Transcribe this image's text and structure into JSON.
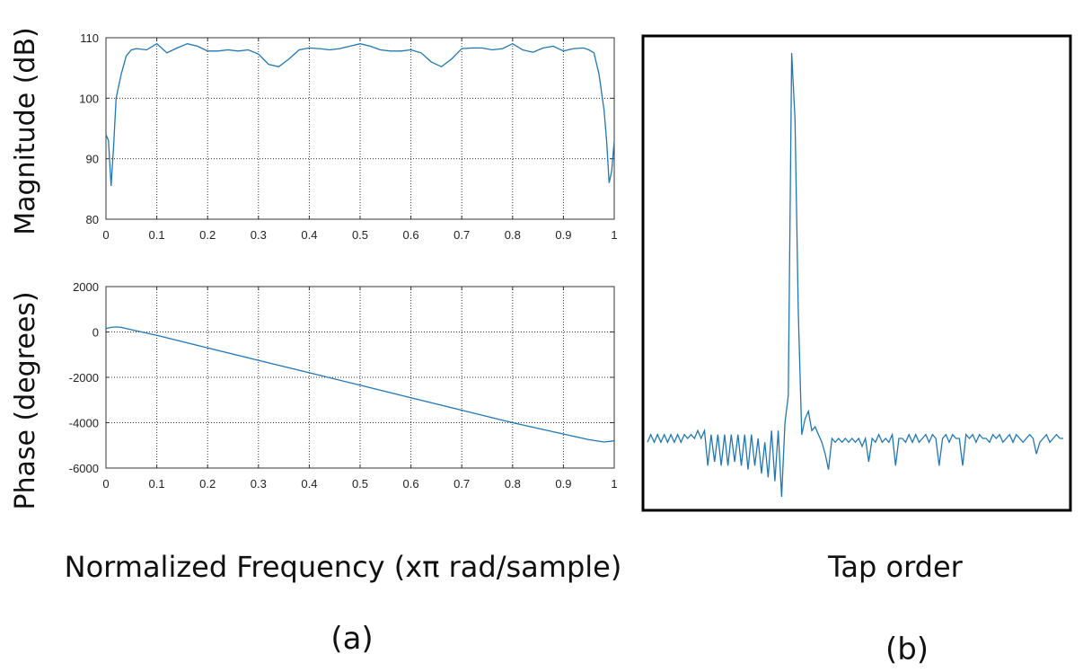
{
  "labels": {
    "magnitude_ylabel": "Magnitude (dB)",
    "phase_ylabel": "Phase (degrees)",
    "xlabel_a": "Normalized Frequency (xπ rad/sample)",
    "xlabel_b": "Tap order",
    "caption_a": "(a)",
    "caption_b": "(b)"
  },
  "colors": {
    "line": "#1f77b4"
  },
  "chart_data": [
    {
      "type": "line",
      "ylabel": "Magnitude (dB)",
      "xlabel": "",
      "xlim": [
        0,
        1
      ],
      "ylim": [
        80,
        110
      ],
      "xticks": [
        0,
        0.1,
        0.2,
        0.3,
        0.4,
        0.5,
        0.6,
        0.7,
        0.8,
        0.9,
        1
      ],
      "xtick_labels": [
        "0",
        "0.1",
        "0.2",
        "0.3",
        "0.4",
        "0.5",
        "0.6",
        "0.7",
        "0.8",
        "0.9",
        "1"
      ],
      "yticks": [
        80,
        90,
        100,
        110
      ],
      "ytick_labels": [
        "80",
        "90",
        "100",
        "110"
      ],
      "grid": true,
      "x": [
        0,
        0.005,
        0.01,
        0.015,
        0.02,
        0.03,
        0.04,
        0.05,
        0.06,
        0.08,
        0.1,
        0.12,
        0.14,
        0.16,
        0.18,
        0.2,
        0.22,
        0.24,
        0.26,
        0.28,
        0.3,
        0.32,
        0.34,
        0.36,
        0.38,
        0.4,
        0.42,
        0.44,
        0.46,
        0.48,
        0.5,
        0.52,
        0.54,
        0.56,
        0.58,
        0.6,
        0.62,
        0.64,
        0.66,
        0.68,
        0.7,
        0.72,
        0.74,
        0.76,
        0.78,
        0.8,
        0.82,
        0.84,
        0.86,
        0.88,
        0.9,
        0.92,
        0.94,
        0.95,
        0.96,
        0.97,
        0.98,
        0.985,
        0.99,
        0.995,
        1
      ],
      "y": [
        94,
        93,
        85.5,
        92,
        100,
        104,
        107,
        108,
        108.2,
        108,
        109,
        107.5,
        108.3,
        109,
        108.6,
        107.8,
        107.8,
        108,
        107.8,
        108,
        107.3,
        105.6,
        105.2,
        106.5,
        108,
        108.3,
        108.2,
        108,
        108.2,
        108.6,
        109,
        108.6,
        108,
        107.8,
        107.8,
        108,
        107.5,
        106,
        105.2,
        106.5,
        108.2,
        108.3,
        108.3,
        108,
        108.2,
        109,
        108,
        107.6,
        108.3,
        108.6,
        107.8,
        108.2,
        108.3,
        108,
        107.5,
        104,
        98,
        93,
        86,
        88,
        93
      ]
    },
    {
      "type": "line",
      "ylabel": "Phase (degrees)",
      "xlabel": "Normalized Frequency (xπ rad/sample)",
      "xlim": [
        0,
        1
      ],
      "ylim": [
        -6000,
        2000
      ],
      "xticks": [
        0,
        0.1,
        0.2,
        0.3,
        0.4,
        0.5,
        0.6,
        0.7,
        0.8,
        0.9,
        1
      ],
      "xtick_labels": [
        "0",
        "0.1",
        "0.2",
        "0.3",
        "0.4",
        "0.5",
        "0.6",
        "0.7",
        "0.8",
        "0.9",
        "1"
      ],
      "yticks": [
        -6000,
        -4000,
        -2000,
        0,
        2000
      ],
      "ytick_labels": [
        "-6000",
        "-4000",
        "-2000",
        "0",
        "2000"
      ],
      "grid": true,
      "x": [
        0,
        0.01,
        0.02,
        0.03,
        0.05,
        0.1,
        0.2,
        0.3,
        0.4,
        0.5,
        0.6,
        0.7,
        0.8,
        0.9,
        0.95,
        0.98,
        1
      ],
      "y": [
        150,
        200,
        220,
        200,
        100,
        -150,
        -700,
        -1250,
        -1800,
        -2350,
        -2900,
        -3450,
        -4000,
        -4500,
        -4750,
        -4850,
        -4800
      ]
    },
    {
      "type": "line",
      "xlabel": "Tap order",
      "ylabel": "",
      "axes_ticks": false,
      "grid": false,
      "xlim": [
        0,
        124
      ],
      "ylim": [
        -0.15,
        1.05
      ],
      "x": [
        0,
        1,
        2,
        3,
        4,
        5,
        6,
        7,
        8,
        9,
        10,
        11,
        12,
        13,
        14,
        15,
        16,
        17,
        18,
        19,
        20,
        21,
        22,
        23,
        24,
        25,
        26,
        27,
        28,
        29,
        30,
        31,
        32,
        33,
        34,
        35,
        36,
        37,
        38,
        39,
        40,
        41,
        42,
        43,
        44,
        45,
        46,
        47,
        48,
        49,
        50,
        51,
        52,
        53,
        54,
        55,
        56,
        57,
        58,
        59,
        60,
        61,
        62,
        63,
        64,
        65,
        66,
        67,
        68,
        69,
        70,
        71,
        72,
        73,
        74,
        75,
        76,
        77,
        78,
        79,
        80,
        81,
        82,
        83,
        84,
        85,
        86,
        87,
        88,
        89,
        90,
        91,
        92,
        93,
        94,
        95,
        96,
        97,
        98,
        99,
        100,
        101,
        102,
        103,
        104,
        105,
        106,
        107,
        108,
        109,
        110,
        111,
        112,
        113,
        114,
        115,
        116,
        117,
        118,
        119,
        120,
        121,
        122,
        123,
        124
      ],
      "y": [
        0.02,
        0.04,
        0.02,
        0.04,
        0.02,
        0.04,
        0.02,
        0.04,
        0.02,
        0.04,
        0.02,
        0.04,
        0.03,
        0.04,
        0.03,
        0.05,
        0.03,
        0.05,
        -0.04,
        0.04,
        -0.03,
        0.04,
        -0.04,
        0.04,
        -0.04,
        0.04,
        -0.03,
        0.04,
        -0.04,
        0.04,
        -0.05,
        0.04,
        -0.04,
        0.03,
        -0.06,
        0.02,
        -0.07,
        0.05,
        -0.08,
        0.05,
        -0.12,
        0.07,
        0.14,
        1.02,
        0.85,
        0.35,
        0.04,
        0.08,
        0.1,
        0.05,
        0.06,
        0.04,
        0.02,
        -0.01,
        -0.05,
        0.03,
        0.02,
        0.03,
        0.02,
        0.03,
        0.02,
        0.03,
        0.02,
        0.03,
        0.01,
        0.03,
        -0.03,
        0.03,
        0.02,
        0.04,
        0.02,
        0.03,
        0.02,
        0.04,
        -0.04,
        0.03,
        0.03,
        0.02,
        0.04,
        0.02,
        0.04,
        0.02,
        0.03,
        0.04,
        0.02,
        0.04,
        0.03,
        -0.04,
        0.03,
        0.04,
        0.02,
        0.04,
        0.03,
        0.03,
        -0.04,
        0.04,
        0.03,
        0.04,
        0.02,
        0.04,
        0.03,
        0.03,
        0.02,
        0.04,
        0.03,
        0.04,
        0.02,
        0.03,
        0.04,
        0.02,
        0.04,
        0.03,
        0.02,
        0.03,
        0.04,
        0.03,
        -0.01,
        0.02,
        0.03,
        0.04,
        0.02,
        0.03,
        0.04,
        0.03,
        0.03
      ]
    }
  ]
}
